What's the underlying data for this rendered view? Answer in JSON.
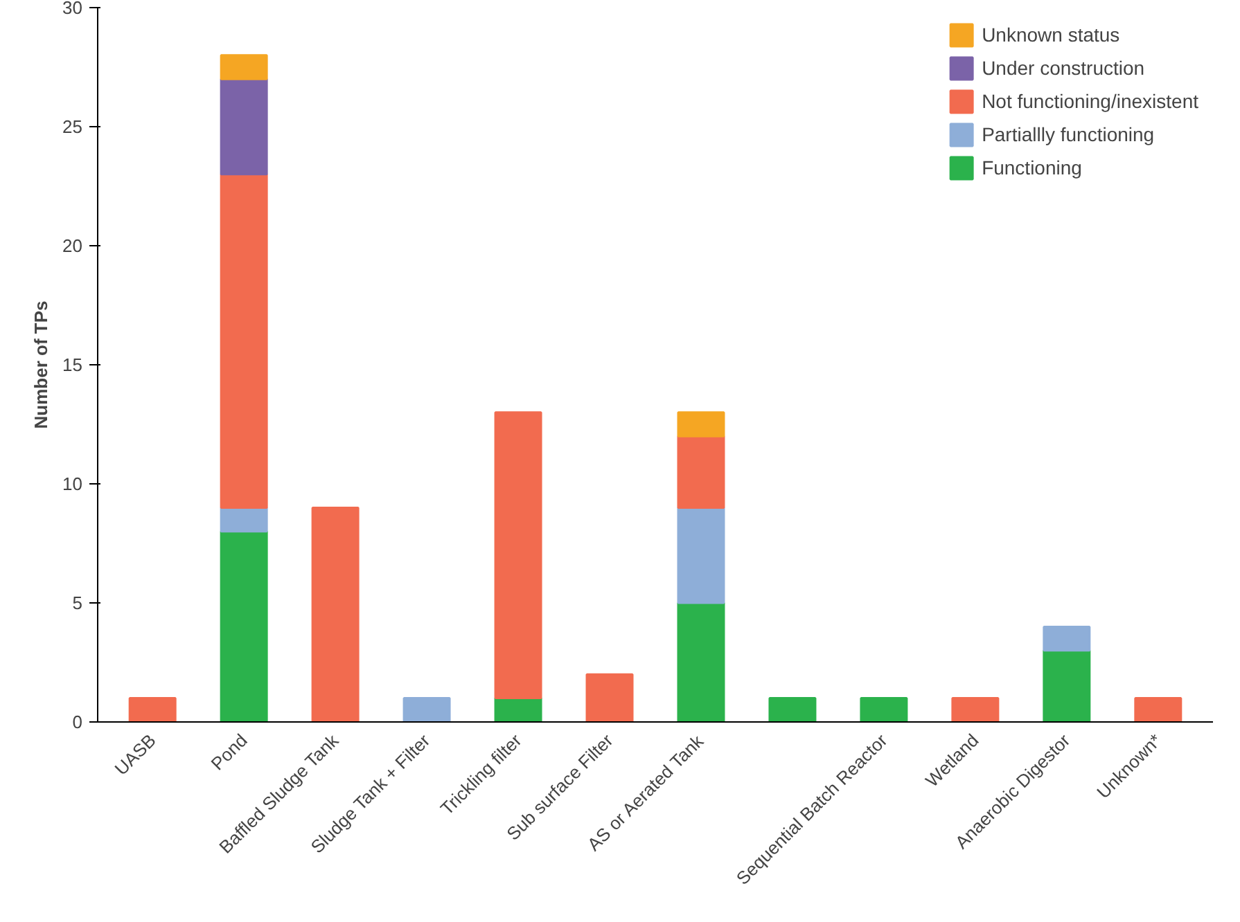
{
  "chart_data": {
    "type": "bar",
    "stacked": true,
    "ylabel": "Number of TPs",
    "categories": [
      "UASB",
      "Pond",
      "Baffled Sludge Tank",
      "Sludge Tank + Filter",
      "Trickling filter",
      "Sub surface Filter",
      "AS or Aerated Tank",
      null,
      "Sequential Batch Reactor",
      "Wetland",
      "Anaerobic Digestor",
      "Unknown*"
    ],
    "series": [
      {
        "name": "Functioning",
        "color": "#2bb24c",
        "values": [
          null,
          8,
          null,
          null,
          1,
          null,
          5,
          1,
          1,
          null,
          3,
          null
        ]
      },
      {
        "name": "Partiallly functioning",
        "color": "#8eaed8",
        "values": [
          null,
          1,
          null,
          1,
          null,
          null,
          4,
          null,
          null,
          null,
          1,
          null
        ]
      },
      {
        "name": "Not functioning/inexistent",
        "color": "#f26b4f",
        "values": [
          1,
          14,
          9,
          null,
          12,
          2,
          3,
          null,
          null,
          1,
          null,
          1
        ]
      },
      {
        "name": "Under construction",
        "color": "#7b63a8",
        "values": [
          null,
          4,
          null,
          null,
          null,
          null,
          null,
          null,
          null,
          null,
          null,
          null
        ]
      },
      {
        "name": "Unknown status",
        "color": "#f5a623",
        "values": [
          null,
          1,
          null,
          null,
          null,
          null,
          1,
          null,
          null,
          null,
          null,
          null
        ]
      }
    ],
    "ylim": [
      0,
      30
    ],
    "yticks": [
      0,
      5,
      10,
      15,
      20,
      25,
      30
    ],
    "grid": false,
    "legend": "top right"
  }
}
